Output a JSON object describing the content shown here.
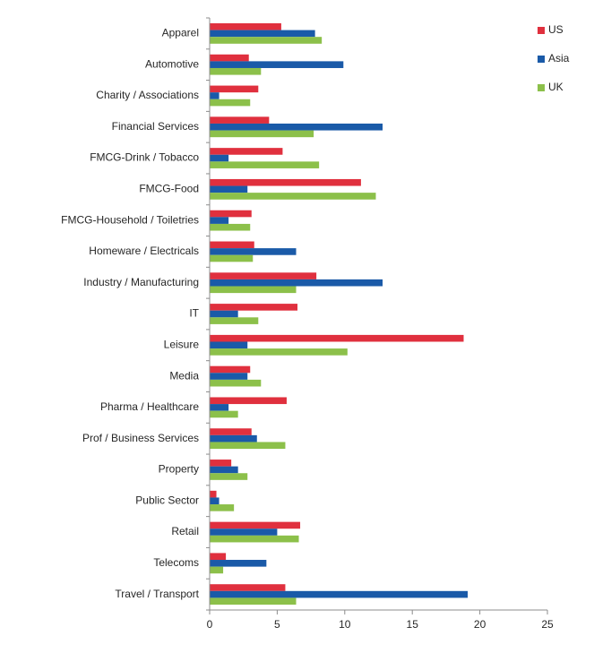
{
  "chart_data": {
    "type": "bar",
    "orientation": "horizontal",
    "title": "",
    "xlabel": "",
    "ylabel": "",
    "xlim": [
      0,
      25
    ],
    "xticks": [
      0,
      5,
      10,
      15,
      20,
      25
    ],
    "grid": false,
    "legend_position": "top-right",
    "categories": [
      "Apparel",
      "Automotive",
      "Charity / Associations",
      "Financial Services",
      "FMCG-Drink / Tobacco",
      "FMCG-Food",
      "FMCG-Household / Toiletries",
      "Homeware / Electricals",
      "Industry / Manufacturing",
      "IT",
      "Leisure",
      "Media",
      "Pharma / Healthcare",
      "Prof / Business Services",
      "Property",
      "Public Sector",
      "Retail",
      "Telecoms",
      "Travel / Transport"
    ],
    "series": [
      {
        "name": "US",
        "color": "#e0303e",
        "values": [
          5.3,
          2.9,
          3.6,
          4.4,
          5.4,
          11.2,
          3.1,
          3.3,
          7.9,
          6.5,
          18.8,
          3.0,
          5.7,
          3.1,
          1.6,
          0.5,
          6.7,
          1.2,
          5.6
        ]
      },
      {
        "name": "Asia",
        "color": "#1a5aa8",
        "values": [
          7.8,
          9.9,
          0.7,
          12.8,
          1.4,
          2.8,
          1.4,
          6.4,
          12.8,
          2.1,
          2.8,
          2.8,
          1.4,
          3.5,
          2.1,
          0.7,
          5.0,
          4.2,
          19.1
        ]
      },
      {
        "name": "UK",
        "color": "#8cc04a",
        "values": [
          8.3,
          3.8,
          3.0,
          7.7,
          8.1,
          12.3,
          3.0,
          3.2,
          6.4,
          3.6,
          10.2,
          3.8,
          2.1,
          5.6,
          2.8,
          1.8,
          6.6,
          1.0,
          6.4
        ]
      }
    ]
  }
}
